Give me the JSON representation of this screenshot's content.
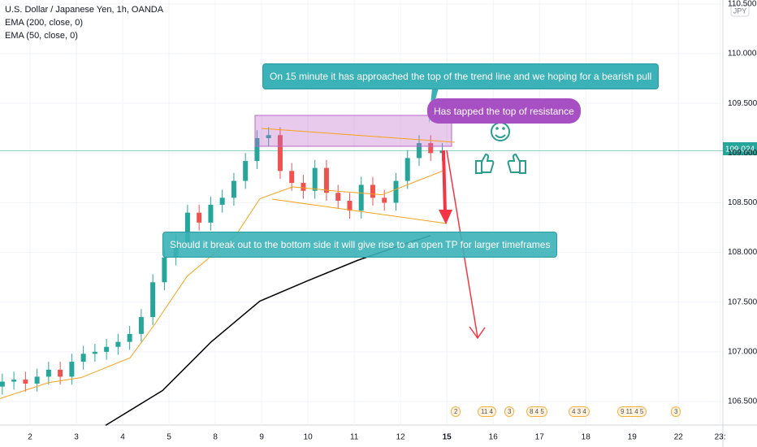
{
  "chart_data": {
    "type": "candlestick",
    "title": "U.S. Dollar / Japanese Yen, 1h, OANDA",
    "indicators": [
      "EMA (200, close, 0)",
      "EMA (50, close, 0)"
    ],
    "currency": "JPY",
    "last_price": {
      "value": 109.024,
      "label": "109.024"
    },
    "x": [
      -0.6,
      -0.35,
      -0.1,
      0.15,
      0.4,
      0.65,
      0.9,
      1.15,
      1.4,
      1.65,
      1.9,
      2.15,
      2.4,
      2.65,
      2.9,
      3.15,
      3.4,
      3.65,
      3.9,
      4.15,
      4.4,
      4.65,
      4.9,
      5.15,
      5.4,
      5.65,
      5.9,
      6.15,
      6.4,
      6.65,
      6.9,
      7.15,
      7.4,
      7.65,
      7.9,
      8.15,
      8.4,
      8.65,
      8.9
    ],
    "open": [
      106.65,
      106.7,
      106.72,
      106.68,
      106.75,
      106.82,
      106.75,
      106.9,
      106.98,
      107.0,
      107.05,
      107.1,
      107.18,
      107.35,
      107.7,
      107.95,
      108.1,
      108.4,
      108.3,
      108.48,
      108.55,
      108.72,
      108.92,
      109.15,
      109.18,
      108.82,
      108.7,
      108.62,
      108.85,
      108.6,
      108.52,
      108.42,
      108.68,
      108.55,
      108.5,
      108.72,
      108.95,
      109.1,
      109.0
    ],
    "high": [
      106.78,
      106.8,
      106.8,
      106.83,
      106.9,
      106.9,
      106.98,
      107.06,
      107.08,
      107.13,
      107.18,
      107.26,
      107.43,
      107.78,
      108.03,
      108.18,
      108.48,
      108.48,
      108.56,
      108.63,
      108.8,
      109.0,
      109.23,
      109.26,
      109.26,
      108.9,
      108.78,
      108.93,
      108.93,
      108.68,
      108.6,
      108.76,
      108.76,
      108.63,
      108.8,
      109.03,
      109.18,
      109.18,
      109.1
    ],
    "low": [
      106.57,
      106.62,
      106.6,
      106.6,
      106.67,
      106.67,
      106.67,
      106.82,
      106.9,
      106.92,
      106.97,
      107.02,
      107.1,
      107.27,
      107.62,
      107.87,
      108.02,
      108.22,
      108.22,
      108.4,
      108.47,
      108.64,
      108.84,
      109.07,
      108.74,
      108.62,
      108.54,
      108.54,
      108.52,
      108.44,
      108.34,
      108.34,
      108.47,
      108.42,
      108.42,
      108.64,
      108.87,
      108.92,
      108.92
    ],
    "close": [
      106.7,
      106.72,
      106.68,
      106.75,
      106.82,
      106.75,
      106.9,
      106.98,
      107.0,
      107.05,
      107.1,
      107.18,
      107.35,
      107.7,
      107.95,
      108.1,
      108.4,
      108.3,
      108.48,
      108.55,
      108.72,
      108.92,
      109.15,
      109.18,
      108.82,
      108.7,
      108.62,
      108.85,
      108.6,
      108.52,
      108.42,
      108.68,
      108.55,
      108.5,
      108.72,
      108.95,
      109.1,
      109.0,
      109.024
    ],
    "up_color": "#26a69a",
    "down_color": "#ef5350",
    "lines": [
      {
        "name": "EMA (50, close, 0)",
        "color": "#f7a21b",
        "x": [
          -0.65,
          0.4,
          1.1,
          2.16,
          2.68,
          3.39,
          4.44,
          4.96,
          5.67,
          6.54,
          7.6,
          8.47,
          8.91
        ],
        "values": [
          106.53,
          106.69,
          106.74,
          106.94,
          107.27,
          107.76,
          108.17,
          108.54,
          108.66,
          108.62,
          108.58,
          108.74,
          108.82
        ]
      },
      {
        "name": "EMA (200, close, 0)",
        "color": "#000000",
        "x": [
          1.63,
          2.86,
          3.91,
          4.96,
          6.02,
          7.07,
          8.12,
          8.65
        ],
        "values": [
          106.26,
          106.61,
          107.1,
          107.51,
          107.72,
          107.92,
          108.09,
          108.17
        ]
      }
    ],
    "xlim": [
      -0.65,
      14.96
    ],
    "xticks": [
      {
        "value": 0,
        "label": "2"
      },
      {
        "value": 1,
        "label": "3"
      },
      {
        "value": 2,
        "label": "4"
      },
      {
        "value": 3,
        "label": "5"
      },
      {
        "value": 4,
        "label": "8"
      },
      {
        "value": 5,
        "label": "9"
      },
      {
        "value": 6,
        "label": "10"
      },
      {
        "value": 7,
        "label": "11"
      },
      {
        "value": 8,
        "label": "12"
      },
      {
        "value": 9,
        "label": "15"
      },
      {
        "value": 10,
        "label": "16"
      },
      {
        "value": 11,
        "label": "17"
      },
      {
        "value": 12,
        "label": "18"
      },
      {
        "value": 13,
        "label": "19"
      },
      {
        "value": 14,
        "label": "22"
      },
      {
        "value": 14.9,
        "label": "23:"
      }
    ],
    "ylim": [
      106.263,
      110.54
    ],
    "yticks": [
      {
        "value": 106.5,
        "label": "106.500"
      },
      {
        "value": 107,
        "label": "107.000"
      },
      {
        "value": 107.5,
        "label": "107.500"
      },
      {
        "value": 108,
        "label": "108.000"
      },
      {
        "value": 108.5,
        "label": "108.500"
      },
      {
        "value": 109,
        "label": "109.000"
      },
      {
        "value": 109.5,
        "label": "109.500"
      },
      {
        "value": 110,
        "label": "110.000"
      },
      {
        "value": 110.5,
        "label": "110.500"
      }
    ],
    "annotations": [
      "On 15 minute it has approached the top of the trend line and we hoping for a bearish pull",
      "Has tapped the top of resistance",
      "Should it break out to the bottom side it will give rise to an open TP for larger timeframes"
    ],
    "events": [
      "2",
      "11 4",
      "3",
      "8 4 5",
      "4 3 4",
      "9 11 4 5",
      "3"
    ]
  }
}
